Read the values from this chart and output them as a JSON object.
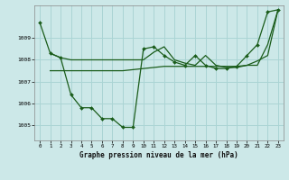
{
  "title": "Graphe pression niveau de la mer (hPa)",
  "bg_color": "#cce8e8",
  "grid_color": "#aad4d4",
  "line_color": "#1a5c1a",
  "marker_color": "#1a5c1a",
  "xlim": [
    -0.5,
    23.5
  ],
  "ylim": [
    1004.3,
    1010.5
  ],
  "yticks": [
    1005,
    1006,
    1007,
    1008,
    1009
  ],
  "xticks": [
    0,
    1,
    2,
    3,
    4,
    5,
    6,
    7,
    8,
    9,
    10,
    11,
    12,
    13,
    14,
    15,
    16,
    17,
    18,
    19,
    20,
    21,
    22,
    23
  ],
  "series1_with_markers": {
    "x": [
      0,
      1,
      2,
      3,
      4,
      5,
      6,
      7,
      8,
      9,
      10,
      11,
      12,
      13,
      14,
      15,
      16,
      17,
      18,
      19,
      20,
      21,
      22,
      23
    ],
    "y": [
      1009.7,
      1008.3,
      1008.1,
      1006.4,
      1005.8,
      1005.8,
      1005.3,
      1005.3,
      1004.9,
      1004.9,
      1008.5,
      1008.6,
      1008.2,
      1007.9,
      1007.75,
      1008.2,
      1007.75,
      1007.6,
      1007.6,
      1007.7,
      1008.2,
      1008.7,
      1010.2,
      1010.3
    ]
  },
  "series2_flat": {
    "x": [
      1,
      2,
      3,
      4,
      5,
      6,
      7,
      8,
      9,
      10,
      11,
      12,
      13,
      14,
      15,
      16,
      17,
      18,
      19,
      20,
      21,
      22,
      23
    ],
    "y": [
      1007.5,
      1007.5,
      1007.5,
      1007.5,
      1007.5,
      1007.5,
      1007.5,
      1007.5,
      1007.55,
      1007.6,
      1007.65,
      1007.7,
      1007.7,
      1007.7,
      1007.7,
      1007.7,
      1007.7,
      1007.7,
      1007.7,
      1007.75,
      1007.75,
      1008.7,
      1010.3
    ]
  },
  "series3_upper": {
    "x": [
      1,
      2,
      3,
      10,
      11,
      12,
      13,
      14,
      15,
      16,
      17,
      18,
      19,
      20,
      21,
      22,
      23
    ],
    "y": [
      1008.3,
      1008.1,
      1008.0,
      1008.0,
      1008.35,
      1008.6,
      1008.0,
      1007.85,
      1007.75,
      1008.2,
      1007.75,
      1007.65,
      1007.65,
      1007.75,
      1007.95,
      1008.2,
      1010.3
    ]
  }
}
